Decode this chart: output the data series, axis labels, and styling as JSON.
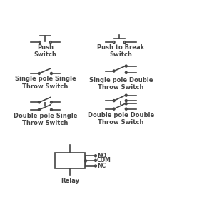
{
  "bg_color": "#ffffff",
  "line_color": "#444444",
  "lw": 1.2,
  "circle_r": 0.006,
  "fs": 6.0,
  "symbols": {
    "push_switch": {
      "label": "Push\nSwitch"
    },
    "push_to_break": {
      "label": "Push to Break\nSwitch"
    },
    "spst": {
      "label": "Single pole Single\nThrow Switch"
    },
    "spdt": {
      "label": "Single pole Double\nThrow Switch"
    },
    "dpst": {
      "label": "Double pole Single\nThrow Switch"
    },
    "dpdt": {
      "label": "Double pole Double\nThrow Switch"
    },
    "relay": {
      "label": "Relay"
    }
  }
}
